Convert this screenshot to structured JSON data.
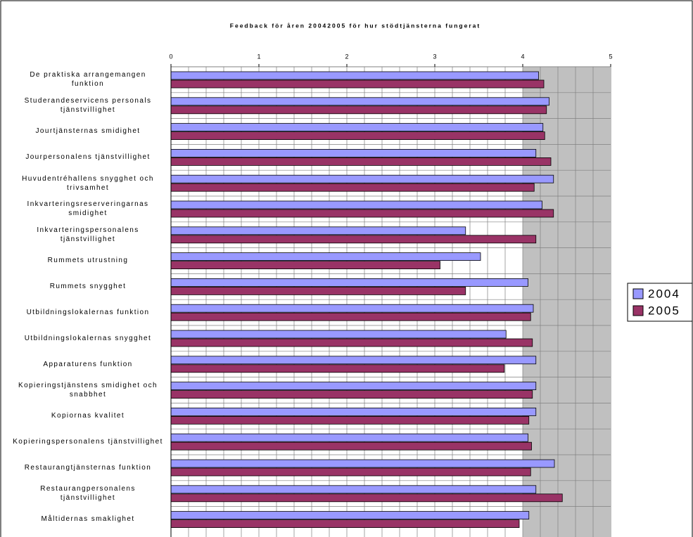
{
  "chart_data": {
    "type": "barh",
    "title": "Feedback för åren 20042005 för hur stödtjänsterna fungerat",
    "categories": [
      "De praktiska arrangemangen funktion",
      "Studerandeservicens personals tjänstvillighet",
      "Jourtjänsternas smidighet",
      "Jourpersonalens tjänstvillighet",
      "Huvudentréhallens snygghet och trivsamhet",
      "Inkvarteringsreserveringarnas smidighet",
      "Inkvarteringspersonalens tjänstvillighet",
      "Rummets utrustning",
      "Rummets snygghet",
      "Utbildningslokalernas funktion",
      "Utbildningslokalernas snygghet",
      "Apparaturens funktion",
      "Kopieringstjänstens smidighet och snabbhet",
      "Kopiornas kvalitet",
      "Kopieringspersonalens tjänstvillighet",
      "Restaurangtjänsternas funktion",
      "Restaurangpersonalens tjänstvillighet",
      "Måltidernas smaklighet"
    ],
    "series": [
      {
        "name": "2004",
        "color": "#9999ff",
        "values": [
          4.18,
          4.3,
          4.23,
          4.15,
          4.35,
          4.22,
          3.35,
          3.52,
          4.06,
          4.12,
          3.81,
          4.15,
          4.15,
          4.15,
          4.06,
          4.36,
          4.15,
          4.07
        ]
      },
      {
        "name": "2005",
        "color": "#993366",
        "values": [
          4.24,
          4.27,
          4.25,
          4.32,
          4.13,
          4.35,
          4.15,
          3.06,
          3.35,
          4.09,
          4.11,
          3.79,
          4.11,
          4.07,
          4.1,
          4.09,
          4.45,
          3.96
        ]
      }
    ],
    "xlim": [
      0,
      5
    ],
    "xticks": [
      0,
      1,
      2,
      3,
      4,
      5
    ],
    "grid": true,
    "legend": "right"
  }
}
